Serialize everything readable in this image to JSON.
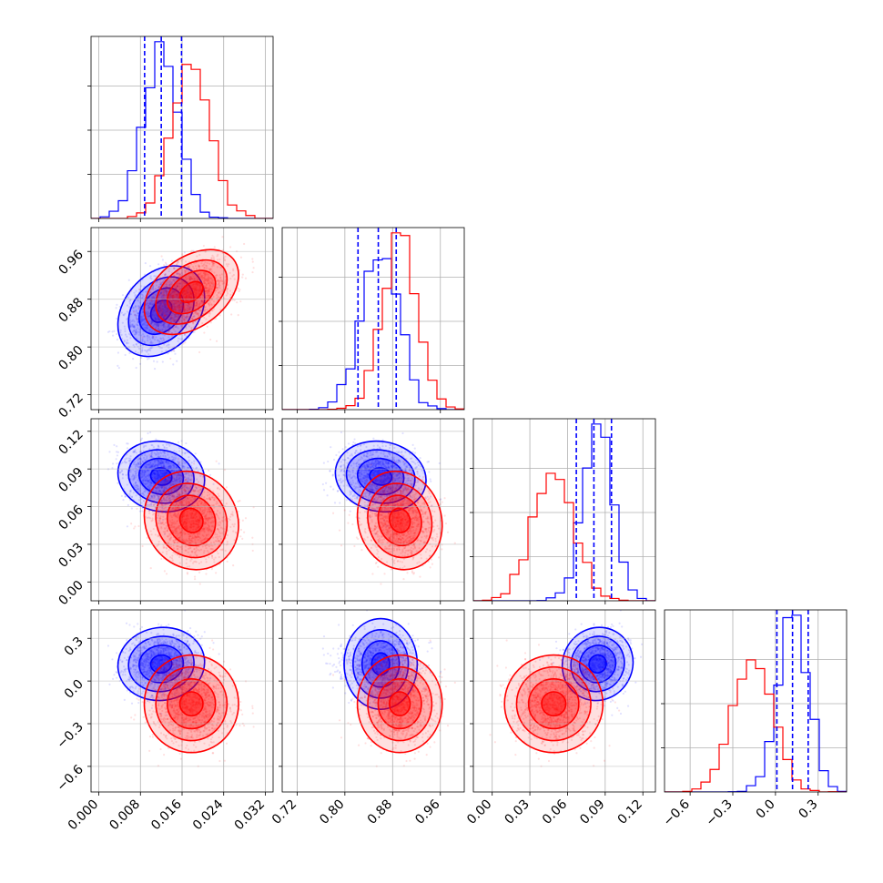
{
  "chart_data": {
    "type": "scatter",
    "title": "",
    "subtitle": "",
    "kind": "corner plot (2 posterior samples, 4 parameters)",
    "parameters": [
      "p1",
      "p2",
      "p3",
      "p4"
    ],
    "parameter_labels": [
      "",
      "",
      "",
      ""
    ],
    "ranges": [
      [
        -0.0015,
        0.0335
      ],
      [
        0.695,
        1.0
      ],
      [
        -0.015,
        0.13
      ],
      [
        -0.78,
        0.5
      ]
    ],
    "ticks": [
      [
        0.0,
        0.008,
        0.016,
        0.024,
        0.032
      ],
      [
        0.72,
        0.8,
        0.88,
        0.96
      ],
      [
        0.0,
        0.03,
        0.06,
        0.09,
        0.12
      ],
      [
        -0.6,
        -0.3,
        0.0,
        0.3
      ]
    ],
    "tick_labels": [
      [
        "0.000",
        "0.008",
        "0.016",
        "0.024",
        "0.032"
      ],
      [
        "0.72",
        "0.80",
        "0.88",
        "0.96"
      ],
      [
        "0.00",
        "0.03",
        "0.06",
        "0.09",
        "0.12"
      ],
      [
        "−0.6",
        "−0.3",
        "0.0",
        "0.3"
      ]
    ],
    "grid": true,
    "legend": "none",
    "series": [
      {
        "color": "#0000ff",
        "mean": [
          0.012,
          0.86,
          0.084,
          0.12
        ],
        "std": [
          0.0034,
          0.031,
          0.0115,
          0.105
        ],
        "correlation": [
          [
            1.0,
            0.3,
            -0.1,
            0.05
          ],
          [
            0.3,
            1.0,
            -0.1,
            0.0
          ],
          [
            -0.1,
            -0.1,
            1.0,
            0.05
          ],
          [
            0.05,
            0.0,
            0.05,
            1.0
          ]
        ],
        "quantiles": [
          [
            0.0088,
            0.012,
            0.0159
          ],
          [
            0.822,
            0.856,
            0.886
          ],
          [
            0.067,
            0.081,
            0.095
          ],
          [
            0.01,
            0.12,
            0.23
          ]
        ],
        "histogram_peak": [
          0.013,
          0.862,
          0.086,
          0.15
        ]
      },
      {
        "color": "#ff0000",
        "mean": [
          0.0178,
          0.892,
          0.049,
          -0.16
        ],
        "std": [
          0.0037,
          0.029,
          0.016,
          0.14
        ],
        "correlation": [
          [
            1.0,
            0.4,
            -0.1,
            0.0
          ],
          [
            0.4,
            1.0,
            -0.1,
            0.0
          ],
          [
            -0.1,
            -0.1,
            1.0,
            0.0
          ],
          [
            0.0,
            0.0,
            0.0,
            1.0
          ]
        ],
        "quantiles": [],
        "histogram_peak": [
          0.018,
          0.89,
          0.048,
          -0.18
        ]
      }
    ],
    "quantile_lines": {
      "color": "#0000ff",
      "style": "dashed",
      "series": "blue"
    }
  }
}
